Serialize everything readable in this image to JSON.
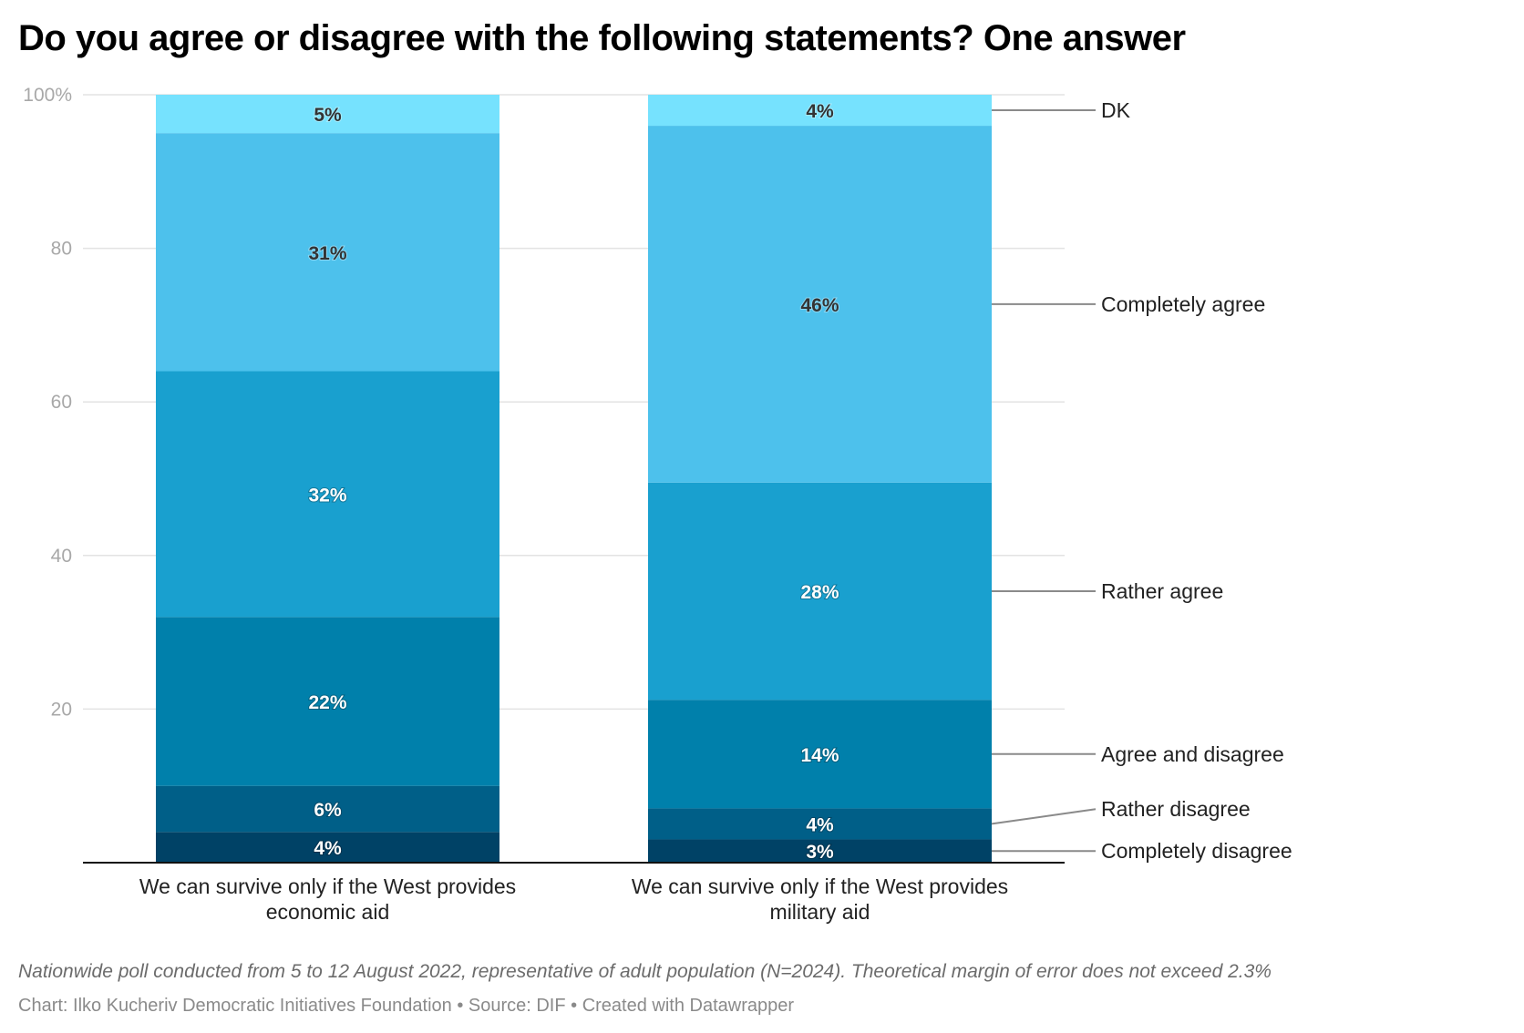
{
  "chart_data": {
    "type": "bar",
    "stacked": true,
    "title": "Do you agree or disagree with the following statements? One answer",
    "xlabel": "",
    "ylabel": "",
    "ylim": [
      0,
      100
    ],
    "yticks": [
      {
        "value": 0,
        "label": ""
      },
      {
        "value": 20,
        "label": "20"
      },
      {
        "value": 40,
        "label": "40"
      },
      {
        "value": 60,
        "label": "60"
      },
      {
        "value": 80,
        "label": "80"
      },
      {
        "value": 100,
        "label": "100%"
      }
    ],
    "grid": true,
    "legend": "right (direct labels)",
    "categories": [
      [
        "We can survive only if the West provides",
        "economic aid"
      ],
      [
        "We can survive only if the West provides",
        "military aid"
      ]
    ],
    "series": [
      {
        "name": "Completely disagree",
        "color": "#004266",
        "label_color": "#ffffff",
        "values": [
          4,
          3
        ]
      },
      {
        "name": "Rather disagree",
        "color": "#005f88",
        "label_color": "#ffffff",
        "values": [
          6,
          4
        ]
      },
      {
        "name": "Agree and disagree",
        "color": "#0080ab",
        "label_color": "#ffffff",
        "values": [
          22,
          14
        ]
      },
      {
        "name": "Rather agree",
        "color": "#19a0cf",
        "label_color": "#ffffff",
        "values": [
          32,
          28
        ]
      },
      {
        "name": "Completely agree",
        "color": "#4dc1ec",
        "label_color": "#333333",
        "values": [
          31,
          46
        ]
      },
      {
        "name": "DK",
        "color": "#76e2fe",
        "label_color": "#333333",
        "values": [
          5,
          4
        ]
      }
    ],
    "value_suffix": "%"
  },
  "notes": "Nationwide poll conducted from 5 to 12 August 2022, representative of adult population (N=2024). Theoretical margin of error does not exceed 2.3%",
  "footer": "Chart: Ilko Kucheriv Democratic Initiatives Foundation • Source: DIF • Created with Datawrapper"
}
